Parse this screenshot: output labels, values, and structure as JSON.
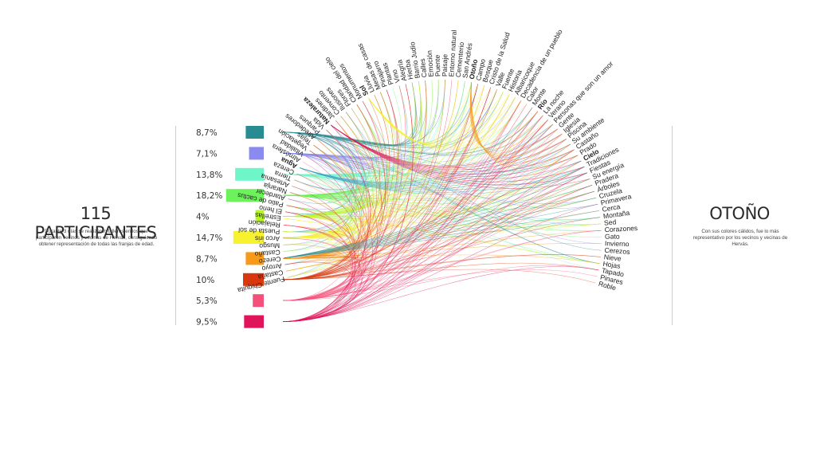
{
  "left": {
    "title": "115 PARTICIPANTES",
    "description": "Durante 3 días se realizaron talleres en los que participaron vecinos y vecinas de Hervás, consiguiendo obtener representación de todas las franjas de edad."
  },
  "right": {
    "title": "OTOÑO",
    "description": "Con sus colores cálidos, fue lo más representativo por los vecinos y vecinas de Hervás."
  },
  "groups": [
    {
      "label": "8,7%",
      "value": 8.7,
      "color": "#2a8c93"
    },
    {
      "label": "7,1%",
      "value": 7.1,
      "color": "#8a8af0"
    },
    {
      "label": "13,8%",
      "value": 13.8,
      "color": "#6ef5c8"
    },
    {
      "label": "18,2%",
      "value": 18.2,
      "color": "#6cf25a"
    },
    {
      "label": "4%",
      "value": 4,
      "color": "#b7f52a"
    },
    {
      "label": "14,7%",
      "value": 14.7,
      "color": "#f7f230"
    },
    {
      "label": "8,7%",
      "value": 8.7,
      "color": "#f79a1a"
    },
    {
      "label": "10%",
      "value": 10,
      "color": "#d9380e"
    },
    {
      "label": "5,3%",
      "value": 5.3,
      "color": "#f5507a"
    },
    {
      "label": "9,5%",
      "value": 9.5,
      "color": "#e0145a"
    }
  ],
  "words": [
    {
      "text": "Fuente Chiquita"
    },
    {
      "text": "Castaña"
    },
    {
      "text": "Arroyo"
    },
    {
      "text": "Cerezo"
    },
    {
      "text": "Castaño"
    },
    {
      "text": "Musgo"
    },
    {
      "text": "Arco iris"
    },
    {
      "text": "Puesta de sol"
    },
    {
      "text": "Relajación"
    },
    {
      "text": "Estrellas"
    },
    {
      "text": "El heno"
    },
    {
      "text": "Patio de cactus"
    },
    {
      "text": "Atardecer"
    },
    {
      "text": "Naranja"
    },
    {
      "text": "Artesanía"
    },
    {
      "text": "Tierra"
    },
    {
      "text": "Cereza"
    },
    {
      "text": "Agua",
      "bold": true
    },
    {
      "text": "Atmósfera"
    },
    {
      "text": "Vitalidad"
    },
    {
      "text": "Vegetación"
    },
    {
      "text": "Tejas"
    },
    {
      "text": "Alrededores"
    },
    {
      "text": "Parques"
    },
    {
      "text": "Vida"
    },
    {
      "text": "Naturaleza",
      "bold": true
    },
    {
      "text": "Jardines"
    },
    {
      "text": "Convento"
    },
    {
      "text": "Ilusiones"
    },
    {
      "text": "Flores"
    },
    {
      "text": "Claridad del cielo"
    },
    {
      "text": "Monumentos"
    },
    {
      "text": "Sol",
      "bold": true
    },
    {
      "text": "Lluvia"
    },
    {
      "text": "Mesas de casas"
    },
    {
      "text": "Pinajarro"
    },
    {
      "text": "Plantas"
    },
    {
      "text": "Vino"
    },
    {
      "text": "Alegría"
    },
    {
      "text": "Hierba"
    },
    {
      "text": "Barrio Judío"
    },
    {
      "text": "Calles"
    },
    {
      "text": "Emoción"
    },
    {
      "text": "Puente"
    },
    {
      "text": "Paisaje"
    },
    {
      "text": "Entorno natural"
    },
    {
      "text": "Cementerio"
    },
    {
      "text": "San Andrés"
    },
    {
      "text": "Otoño",
      "bold": true
    },
    {
      "text": "Campo"
    },
    {
      "text": "Bosque"
    },
    {
      "text": "Cristo de la Salud"
    },
    {
      "text": "Valle"
    },
    {
      "text": "Fuente"
    },
    {
      "text": "Historia"
    },
    {
      "text": "Albaricoque"
    },
    {
      "text": "Decadencia de un pueblo"
    },
    {
      "text": "Calor"
    },
    {
      "text": "Monte"
    },
    {
      "text": "Río",
      "bold": true
    },
    {
      "text": "La noche"
    },
    {
      "text": "Verano"
    },
    {
      "text": "Personas que son un amor"
    },
    {
      "text": "Gente"
    },
    {
      "text": "Iglesia"
    },
    {
      "text": "Piscina"
    },
    {
      "text": "Su ambiente"
    },
    {
      "text": "Castaño"
    },
    {
      "text": "Prado"
    },
    {
      "text": "Cielo",
      "bold": true
    },
    {
      "text": "Tradiciones"
    },
    {
      "text": "Fiestas"
    },
    {
      "text": "Su energía"
    },
    {
      "text": "Pradera"
    },
    {
      "text": "Árboles"
    },
    {
      "text": "Cruzela"
    },
    {
      "text": "Primavera"
    },
    {
      "text": "Cerca"
    },
    {
      "text": "Montaña"
    },
    {
      "text": "Sed"
    },
    {
      "text": "Corazones"
    },
    {
      "text": "Gato"
    },
    {
      "text": "Invierno"
    },
    {
      "text": "Cerezos"
    },
    {
      "text": "Nieve"
    },
    {
      "text": "Hojas"
    },
    {
      "text": "Tapado"
    },
    {
      "text": "Pinares"
    },
    {
      "text": "Roble"
    }
  ]
}
